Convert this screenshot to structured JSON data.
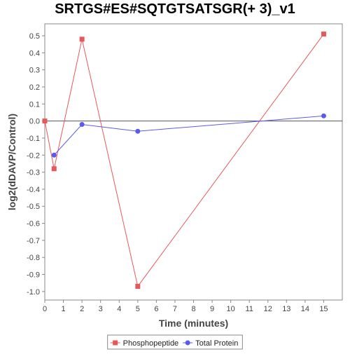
{
  "chart_data": {
    "type": "line",
    "title": "SRTGS#ES#SQTGTSATSGR(+ 3)_v1",
    "xlabel": "Time (minutes)",
    "ylabel": "log2(dDAVP/Control)",
    "xlim": [
      0,
      16
    ],
    "ylim": [
      -1.05,
      0.57
    ],
    "x_ticks": [
      "0",
      "1",
      "2",
      "3",
      "4",
      "5",
      "6",
      "7",
      "8",
      "9",
      "10",
      "11",
      "12",
      "13",
      "14",
      "15"
    ],
    "y_ticks": [
      "0.5",
      "0.4",
      "0.3",
      "0.2",
      "0.1",
      "0.0",
      "-0.1",
      "-0.2",
      "-0.3",
      "-0.4",
      "-0.5",
      "-0.6",
      "-0.7",
      "-0.8",
      "-0.9",
      "-1.0"
    ],
    "zero_line": true,
    "legend_position": "bottom-center",
    "series": [
      {
        "name": "Phosphopeptide",
        "color": "#e8585a",
        "marker": "square",
        "x": [
          0,
          0.5,
          2,
          5,
          15
        ],
        "y": [
          0.0,
          -0.28,
          0.48,
          -0.97,
          0.51
        ]
      },
      {
        "name": "Total Protein",
        "color": "#5b5bea",
        "marker": "circle",
        "x": [
          0.5,
          2,
          5,
          15
        ],
        "y": [
          -0.2,
          -0.02,
          -0.06,
          0.03
        ]
      }
    ]
  }
}
